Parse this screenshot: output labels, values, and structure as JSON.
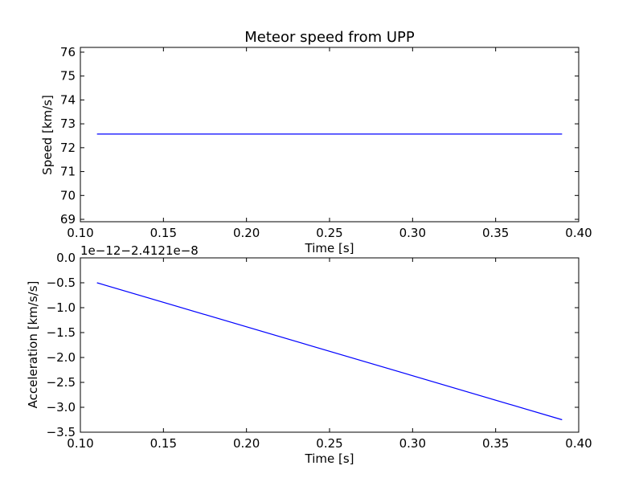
{
  "chart_data": [
    {
      "type": "line",
      "title": "Meteor speed from  UPP",
      "xlabel": "Time [s]",
      "ylabel": "Speed [km/s]",
      "xlim": [
        0.1,
        0.4
      ],
      "ylim": [
        68.9,
        76.2
      ],
      "x_ticks": [
        "0.10",
        "0.15",
        "0.20",
        "0.25",
        "0.30",
        "0.35",
        "0.40"
      ],
      "y_ticks": [
        "69",
        "70",
        "71",
        "72",
        "73",
        "74",
        "75",
        "76"
      ],
      "series": [
        {
          "color": "#0000ff",
          "x": [
            0.11,
            0.39
          ],
          "y": [
            72.57,
            72.57
          ]
        }
      ]
    },
    {
      "type": "line",
      "title": "",
      "xlabel": "Time [s]",
      "ylabel": "Acceleration [km/s/s]",
      "offset_text": "1e−12−2.4121e−8",
      "xlim": [
        0.1,
        0.4
      ],
      "ylim": [
        -3.5,
        0.0
      ],
      "x_ticks": [
        "0.10",
        "0.15",
        "0.20",
        "0.25",
        "0.30",
        "0.35",
        "0.40"
      ],
      "y_ticks": [
        "0.0",
        "−0.5",
        "−1.0",
        "−1.5",
        "−2.0",
        "−2.5",
        "−3.0",
        "−3.5"
      ],
      "series": [
        {
          "color": "#0000ff",
          "x": [
            0.11,
            0.39
          ],
          "y": [
            -0.5,
            -3.25
          ]
        }
      ]
    }
  ]
}
